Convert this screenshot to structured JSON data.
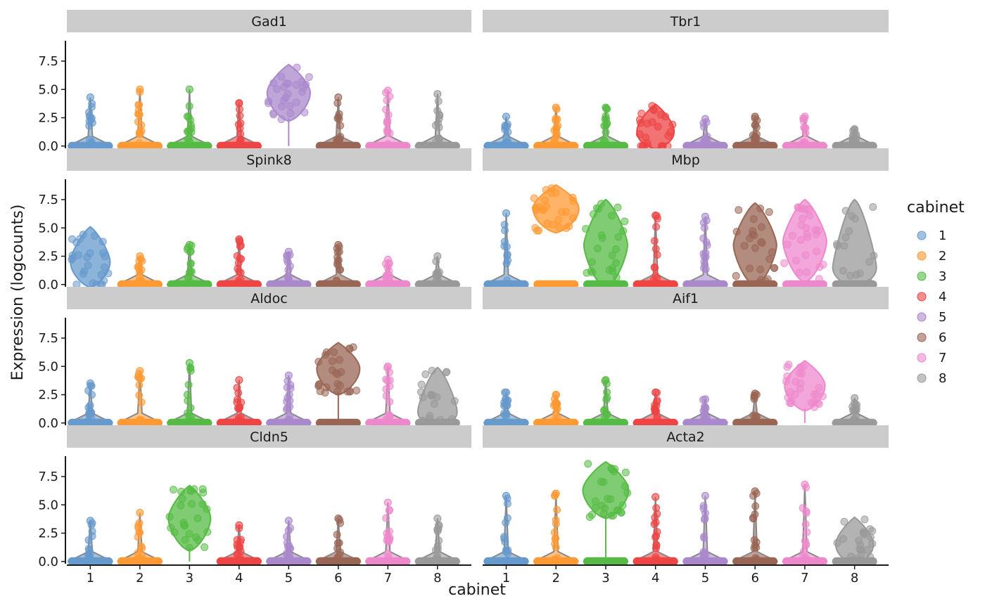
{
  "chart_data": {
    "type": "violin",
    "xlabel": "cabinet",
    "ylabel": "Expression (logcounts)",
    "categories": [
      "1",
      "2",
      "3",
      "4",
      "5",
      "6",
      "7",
      "8"
    ],
    "y_ticks": [
      "0.0",
      "2.5",
      "5.0",
      "7.5"
    ],
    "ylim": [
      -0.2,
      9.3
    ],
    "legend": {
      "title": "cabinet",
      "position": "right",
      "items": [
        "1",
        "2",
        "3",
        "4",
        "5",
        "6",
        "7",
        "8"
      ]
    },
    "colors": [
      "#6699CC",
      "#FF9933",
      "#55BB44",
      "#EE4444",
      "#AA88CC",
      "#996655",
      "#EE88CC",
      "#999999"
    ],
    "layout": "4 rows x 2 columns",
    "panels": [
      {
        "gene": "Gad1",
        "max_values": [
          4.3,
          5.0,
          5.0,
          3.8,
          7.2,
          4.3,
          4.9,
          4.6
        ],
        "median_values": [
          0,
          0,
          0,
          0,
          4.7,
          0,
          0,
          0
        ]
      },
      {
        "gene": "Tbr1",
        "max_values": [
          2.6,
          3.4,
          3.4,
          3.7,
          2.4,
          2.6,
          2.6,
          1.5
        ],
        "median_values": [
          0,
          0,
          0,
          1.3,
          0,
          0,
          0,
          0
        ]
      },
      {
        "gene": "Spink8",
        "max_values": [
          5.1,
          2.5,
          3.5,
          4.0,
          2.9,
          3.5,
          2.2,
          2.5
        ],
        "median_values": [
          2.0,
          0,
          0,
          0,
          0,
          0,
          0,
          0
        ]
      },
      {
        "gene": "Mbp",
        "max_values": [
          6.3,
          8.8,
          7.5,
          6.1,
          6.0,
          7.2,
          7.5,
          7.5
        ],
        "median_values": [
          0,
          6.7,
          3.5,
          0.3,
          0,
          3.5,
          3.8,
          1.5
        ]
      },
      {
        "gene": "Aldoc",
        "max_values": [
          3.5,
          4.6,
          5.3,
          3.8,
          4.2,
          7.1,
          5.0,
          4.9
        ],
        "median_values": [
          0,
          0,
          0,
          0,
          0,
          4.8,
          0,
          1.0
        ]
      },
      {
        "gene": "Aif1",
        "max_values": [
          2.7,
          2.5,
          3.8,
          2.7,
          2.1,
          2.6,
          5.5,
          2.2
        ],
        "median_values": [
          0,
          0,
          0,
          0,
          0,
          0,
          3.3,
          0
        ]
      },
      {
        "gene": "Cldn5",
        "max_values": [
          3.6,
          4.3,
          6.7,
          3.2,
          3.6,
          3.8,
          5.2,
          3.8
        ],
        "median_values": [
          0,
          0,
          3.8,
          0,
          0,
          0,
          0,
          0
        ]
      },
      {
        "gene": "Acta2",
        "max_values": [
          5.8,
          6.0,
          8.8,
          5.7,
          5.8,
          6.2,
          6.8,
          3.9
        ],
        "median_values": [
          0,
          0,
          6.3,
          0,
          0,
          0,
          0,
          1.5
        ]
      }
    ]
  }
}
